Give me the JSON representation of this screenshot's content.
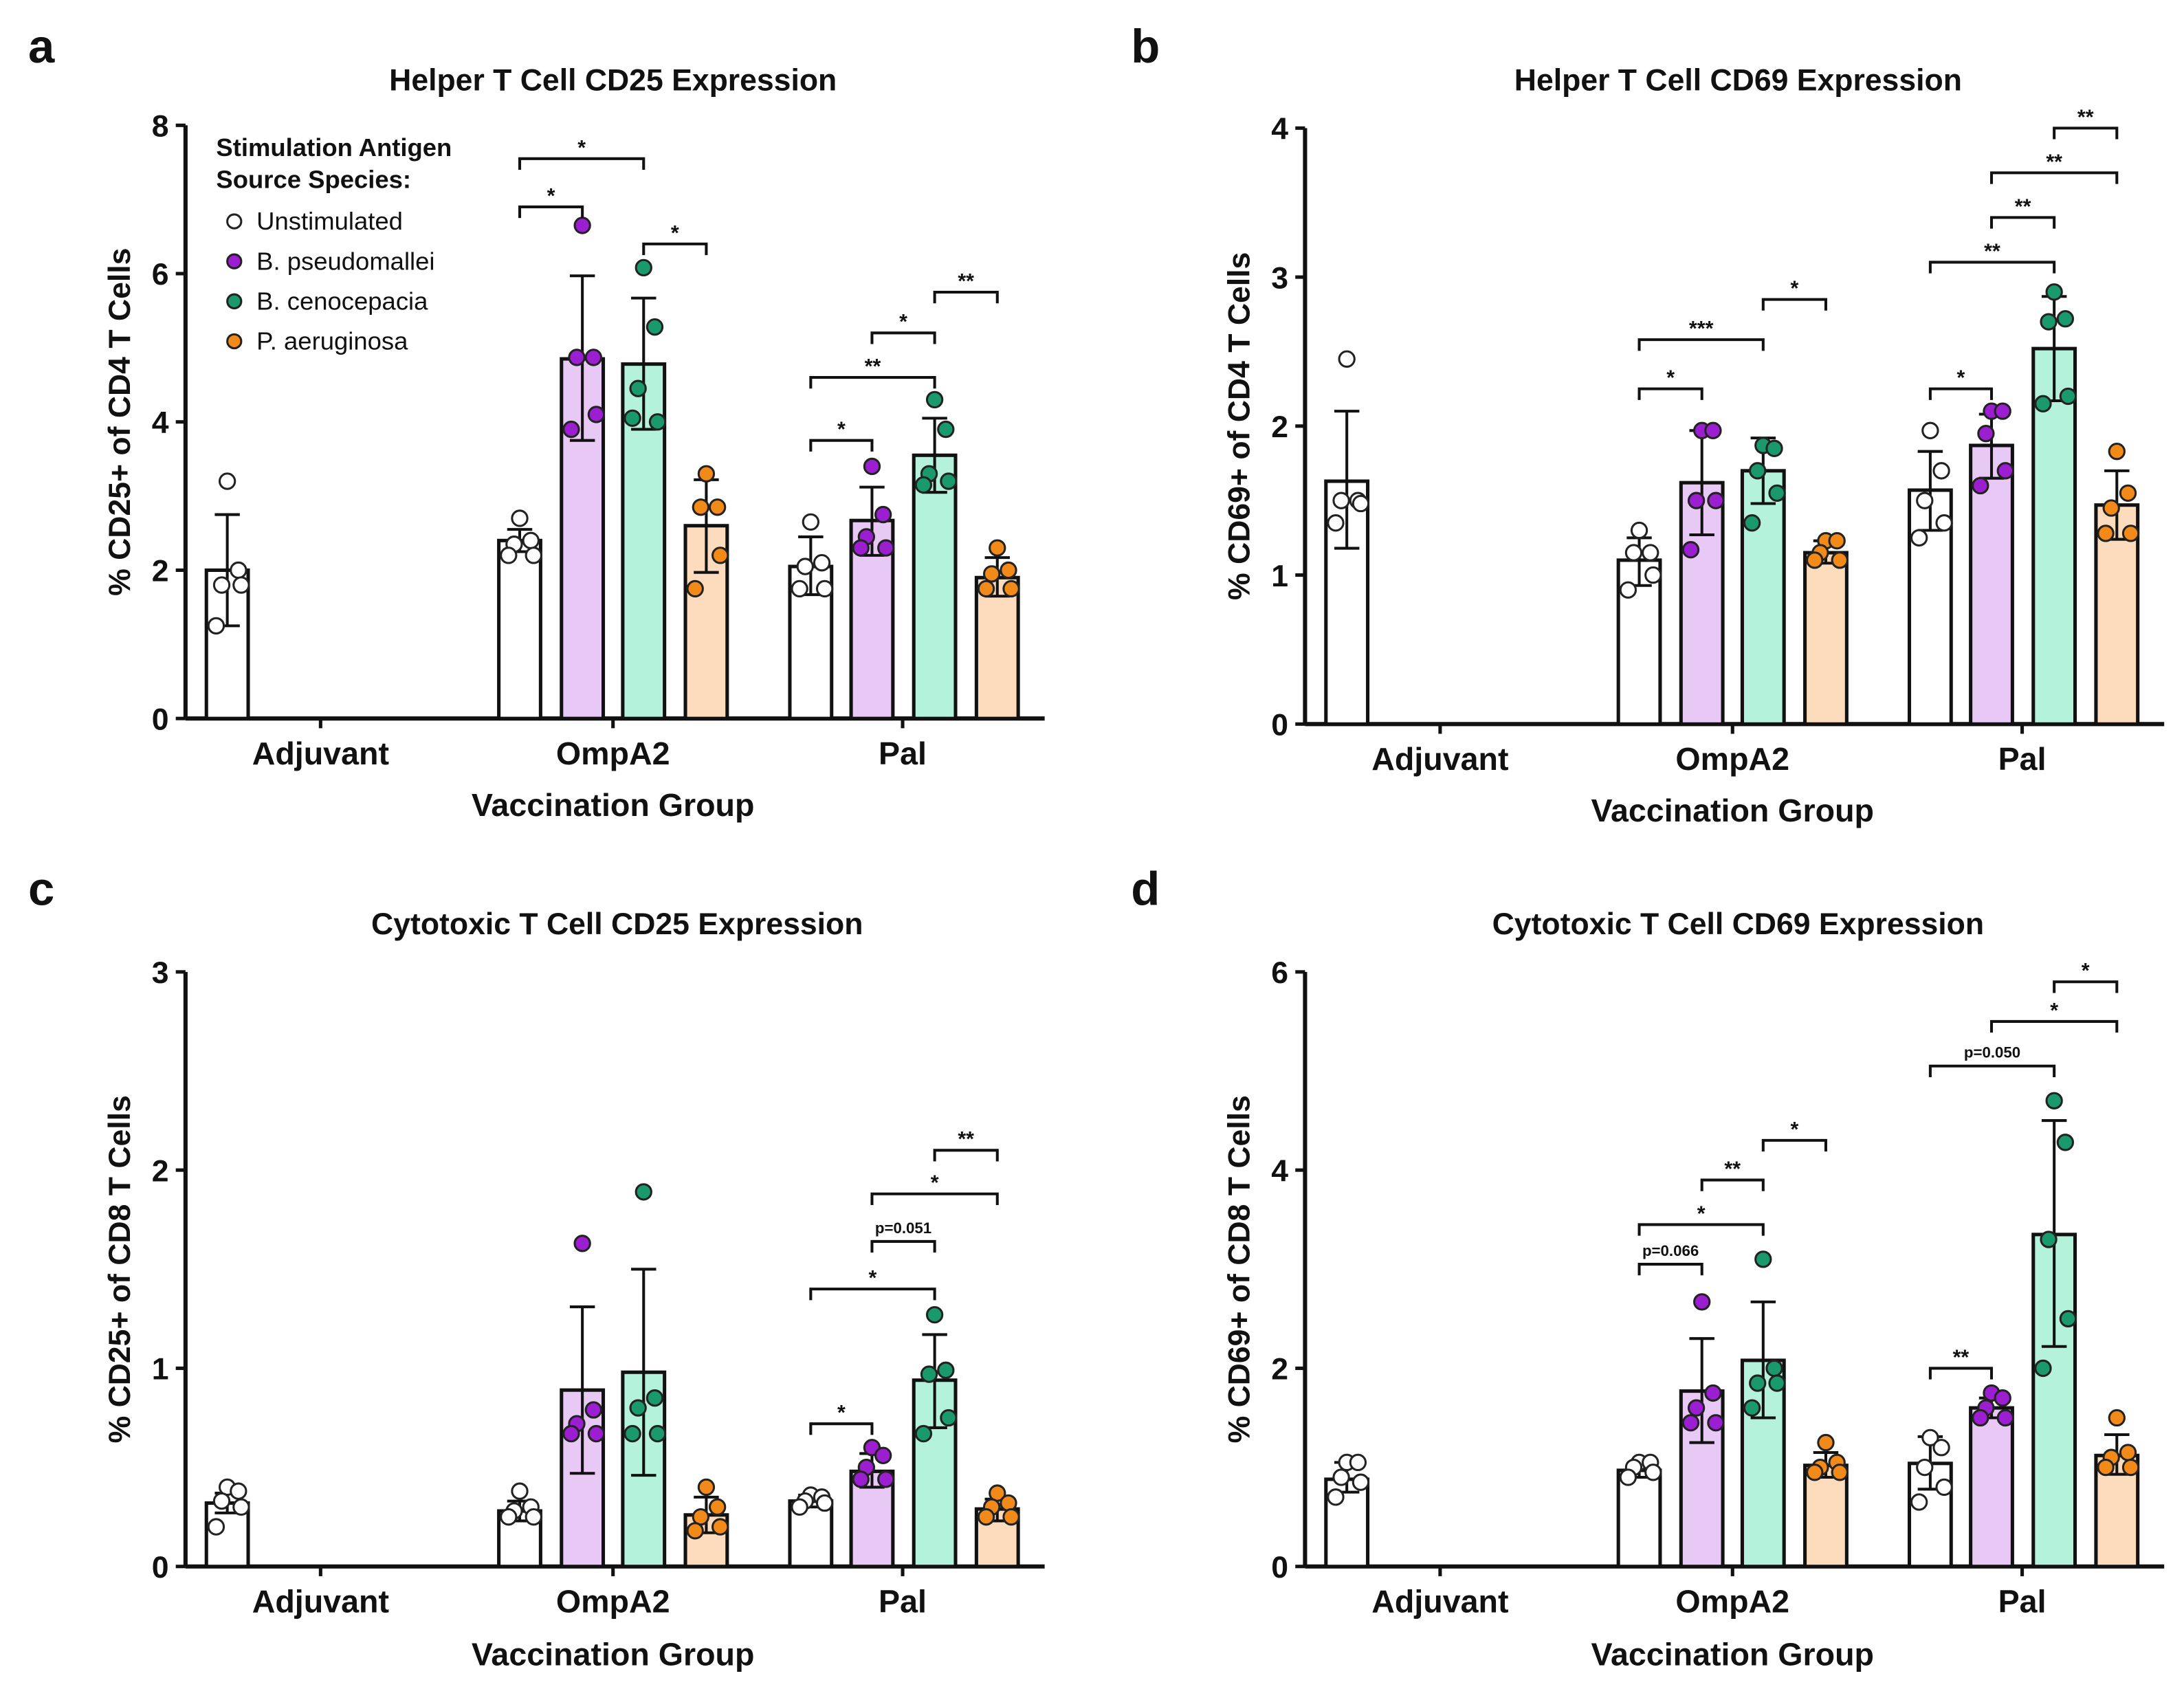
{
  "legend": {
    "title_line1": "Stimulation Antigen",
    "title_line2": "Source Species:",
    "items": [
      {
        "label": "Unstimulated",
        "dot": "#ffffff",
        "fill": "#ffffff"
      },
      {
        "label": "B. pseudomallei",
        "dot": "#9b1fd1",
        "fill": "#e8c8f4"
      },
      {
        "label": "B. cenocepacia",
        "dot": "#1a9a6c",
        "fill": "#b4f2dc"
      },
      {
        "label": "P. aeruginosa",
        "dot": "#f28a1a",
        "fill": "#fcdcbc"
      }
    ]
  },
  "chart_data": [
    {
      "panel": "a",
      "type": "bar",
      "title": "Helper T Cell CD25 Expression",
      "xlabel": "Vaccination Group",
      "ylabel": "% CD25+ of CD4 T Cells",
      "ylim": [
        0,
        8
      ],
      "yticks": [
        "0",
        "2",
        "4",
        "6",
        "8"
      ],
      "categories": [
        "Adjuvant",
        "OmpA2",
        "Pal"
      ],
      "bars": [
        {
          "group": "Adjuvant",
          "series": 0,
          "mean": 2.0,
          "err": [
            1.25,
            2.75
          ],
          "points": [
            3.2,
            2.0,
            1.8,
            1.8,
            1.25
          ]
        },
        {
          "group": "OmpA2",
          "series": 0,
          "mean": 2.4,
          "err": [
            2.25,
            2.55
          ],
          "points": [
            2.7,
            2.4,
            2.35,
            2.2,
            2.2
          ]
        },
        {
          "group": "OmpA2",
          "series": 1,
          "mean": 4.85,
          "err": [
            3.75,
            5.97
          ],
          "points": [
            6.65,
            4.87,
            4.87,
            4.1,
            3.9
          ]
        },
        {
          "group": "OmpA2",
          "series": 2,
          "mean": 4.78,
          "err": [
            3.9,
            5.67
          ],
          "points": [
            6.08,
            5.28,
            4.45,
            4.0,
            4.05
          ]
        },
        {
          "group": "OmpA2",
          "series": 3,
          "mean": 2.6,
          "err": [
            1.97,
            3.22
          ],
          "points": [
            3.3,
            2.85,
            2.85,
            2.2,
            1.75
          ]
        },
        {
          "group": "Pal",
          "series": 0,
          "mean": 2.05,
          "err": [
            1.67,
            2.45
          ],
          "points": [
            2.65,
            2.1,
            2.05,
            1.75,
            1.75
          ]
        },
        {
          "group": "Pal",
          "series": 1,
          "mean": 2.67,
          "err": [
            2.2,
            3.12
          ],
          "points": [
            3.4,
            2.75,
            2.45,
            2.3,
            2.3
          ]
        },
        {
          "group": "Pal",
          "series": 2,
          "mean": 3.55,
          "err": [
            3.05,
            4.05
          ],
          "points": [
            4.3,
            3.9,
            3.3,
            3.2,
            3.15
          ]
        },
        {
          "group": "Pal",
          "series": 3,
          "mean": 1.9,
          "err": [
            1.65,
            2.17
          ],
          "points": [
            2.3,
            2.0,
            1.95,
            1.75,
            1.75
          ]
        }
      ],
      "significance": [
        {
          "group": "OmpA2",
          "from": 0,
          "to": 1,
          "y": 6.9,
          "label": "*"
        },
        {
          "group": "OmpA2",
          "from": 0,
          "to": 2,
          "y": 7.55,
          "label": "*"
        },
        {
          "group": "OmpA2",
          "from": 2,
          "to": 3,
          "y": 6.4,
          "label": "*"
        },
        {
          "group": "Pal",
          "from": 0,
          "to": 1,
          "y": 3.75,
          "label": "*"
        },
        {
          "group": "Pal",
          "from": 0,
          "to": 2,
          "y": 4.6,
          "label": "**"
        },
        {
          "group": "Pal",
          "from": 1,
          "to": 2,
          "y": 5.2,
          "label": "*"
        },
        {
          "group": "Pal",
          "from": 2,
          "to": 3,
          "y": 5.75,
          "label": "**"
        }
      ]
    },
    {
      "panel": "b",
      "type": "bar",
      "title": "Helper T Cell CD69 Expression",
      "xlabel": "Vaccination Group",
      "ylabel": "% CD69+ of CD4 T Cells",
      "ylim": [
        0,
        4
      ],
      "yticks": [
        "0",
        "1",
        "2",
        "3",
        "4"
      ],
      "categories": [
        "Adjuvant",
        "OmpA2",
        "Pal"
      ],
      "bars": [
        {
          "group": "Adjuvant",
          "series": 0,
          "mean": 1.63,
          "err": [
            1.18,
            2.1
          ],
          "points": [
            2.45,
            1.5,
            1.5,
            1.48,
            1.35
          ]
        },
        {
          "group": "OmpA2",
          "series": 0,
          "mean": 1.1,
          "err": [
            0.93,
            1.25
          ],
          "points": [
            1.3,
            1.15,
            1.15,
            1.0,
            0.9
          ]
        },
        {
          "group": "OmpA2",
          "series": 1,
          "mean": 1.62,
          "err": [
            1.27,
            1.97
          ],
          "points": [
            1.97,
            1.97,
            1.5,
            1.5,
            1.17
          ]
        },
        {
          "group": "OmpA2",
          "series": 2,
          "mean": 1.7,
          "err": [
            1.48,
            1.92
          ],
          "points": [
            1.87,
            1.85,
            1.7,
            1.55,
            1.35
          ]
        },
        {
          "group": "OmpA2",
          "series": 3,
          "mean": 1.15,
          "err": [
            1.08,
            1.23
          ],
          "points": [
            1.23,
            1.23,
            1.15,
            1.1,
            1.1
          ]
        },
        {
          "group": "Pal",
          "series": 0,
          "mean": 1.57,
          "err": [
            1.3,
            1.83
          ],
          "points": [
            1.97,
            1.7,
            1.5,
            1.35,
            1.25
          ]
        },
        {
          "group": "Pal",
          "series": 1,
          "mean": 1.87,
          "err": [
            1.65,
            2.08
          ],
          "points": [
            2.1,
            2.1,
            1.95,
            1.7,
            1.6
          ]
        },
        {
          "group": "Pal",
          "series": 2,
          "mean": 2.52,
          "err": [
            2.17,
            2.87
          ],
          "points": [
            2.9,
            2.72,
            2.7,
            2.2,
            2.15
          ]
        },
        {
          "group": "Pal",
          "series": 3,
          "mean": 1.47,
          "err": [
            1.24,
            1.7
          ],
          "points": [
            1.83,
            1.55,
            1.45,
            1.28,
            1.28
          ]
        }
      ],
      "significance": [
        {
          "group": "OmpA2",
          "from": 0,
          "to": 1,
          "y": 2.25,
          "label": "*"
        },
        {
          "group": "OmpA2",
          "from": 0,
          "to": 2,
          "y": 2.58,
          "label": "***"
        },
        {
          "group": "OmpA2",
          "from": 2,
          "to": 3,
          "y": 2.85,
          "label": "*"
        },
        {
          "group": "Pal",
          "from": 0,
          "to": 1,
          "y": 2.25,
          "label": "*"
        },
        {
          "group": "Pal",
          "from": 0,
          "to": 2,
          "y": 3.1,
          "label": "**"
        },
        {
          "group": "Pal",
          "from": 1,
          "to": 2,
          "y": 3.4,
          "label": "**"
        },
        {
          "group": "Pal",
          "from": 1,
          "to": 3,
          "y": 3.7,
          "label": "**"
        },
        {
          "group": "Pal",
          "from": 2,
          "to": 3,
          "y": 4.0,
          "label": "**"
        }
      ]
    },
    {
      "panel": "c",
      "type": "bar",
      "title": "Cytotoxic T Cell CD25 Expression",
      "xlabel": "Vaccination Group",
      "ylabel": "% CD25+ of CD8 T Cells",
      "ylim": [
        0,
        3
      ],
      "yticks": [
        "0",
        "1",
        "2",
        "3"
      ],
      "categories": [
        "Adjuvant",
        "OmpA2",
        "Pal"
      ],
      "bars": [
        {
          "group": "Adjuvant",
          "series": 0,
          "mean": 0.32,
          "err": [
            0.27,
            0.37
          ],
          "points": [
            0.4,
            0.38,
            0.33,
            0.3,
            0.2
          ]
        },
        {
          "group": "OmpA2",
          "series": 0,
          "mean": 0.28,
          "err": [
            0.23,
            0.33
          ],
          "points": [
            0.38,
            0.3,
            0.28,
            0.25,
            0.25
          ]
        },
        {
          "group": "OmpA2",
          "series": 1,
          "mean": 0.89,
          "err": [
            0.47,
            1.31
          ],
          "points": [
            1.63,
            0.79,
            0.72,
            0.67,
            0.67
          ]
        },
        {
          "group": "OmpA2",
          "series": 2,
          "mean": 0.98,
          "err": [
            0.46,
            1.5
          ],
          "points": [
            1.89,
            0.85,
            0.8,
            0.67,
            0.67
          ]
        },
        {
          "group": "OmpA2",
          "series": 3,
          "mean": 0.26,
          "err": [
            0.17,
            0.35
          ],
          "points": [
            0.4,
            0.3,
            0.25,
            0.2,
            0.18
          ]
        },
        {
          "group": "Pal",
          "series": 0,
          "mean": 0.33,
          "err": [
            0.3,
            0.36
          ],
          "points": [
            0.36,
            0.35,
            0.33,
            0.32,
            0.3
          ]
        },
        {
          "group": "Pal",
          "series": 1,
          "mean": 0.48,
          "err": [
            0.4,
            0.57
          ],
          "points": [
            0.6,
            0.56,
            0.5,
            0.44,
            0.44
          ]
        },
        {
          "group": "Pal",
          "series": 2,
          "mean": 0.94,
          "err": [
            0.7,
            1.17
          ],
          "points": [
            1.27,
            0.99,
            0.97,
            0.75,
            0.67
          ]
        },
        {
          "group": "Pal",
          "series": 3,
          "mean": 0.29,
          "err": [
            0.23,
            0.34
          ],
          "points": [
            0.37,
            0.32,
            0.3,
            0.25,
            0.25
          ]
        }
      ],
      "significance": [
        {
          "group": "Pal",
          "from": 0,
          "to": 1,
          "y": 0.72,
          "label": "*"
        },
        {
          "group": "Pal",
          "from": 0,
          "to": 2,
          "y": 1.4,
          "label": "*"
        },
        {
          "group": "Pal",
          "from": 1,
          "to": 2,
          "y": 1.64,
          "label": "p=0.051"
        },
        {
          "group": "Pal",
          "from": 1,
          "to": 3,
          "y": 1.88,
          "label": "*"
        },
        {
          "group": "Pal",
          "from": 2,
          "to": 3,
          "y": 2.1,
          "label": "**"
        }
      ]
    },
    {
      "panel": "d",
      "type": "bar",
      "title": "Cytotoxic T Cell CD69 Expression",
      "xlabel": "Vaccination Group",
      "ylabel": "% CD69+ of CD8 T Cells",
      "ylim": [
        0,
        6
      ],
      "yticks": [
        "0",
        "2",
        "4",
        "6"
      ],
      "categories": [
        "Adjuvant",
        "OmpA2",
        "Pal"
      ],
      "bars": [
        {
          "group": "Adjuvant",
          "series": 0,
          "mean": 0.88,
          "err": [
            0.75,
            1.05
          ],
          "points": [
            1.05,
            1.05,
            0.9,
            0.85,
            0.7
          ]
        },
        {
          "group": "OmpA2",
          "series": 0,
          "mean": 0.97,
          "err": [
            0.9,
            1.04
          ],
          "points": [
            1.05,
            1.05,
            1.0,
            0.95,
            0.9
          ]
        },
        {
          "group": "OmpA2",
          "series": 1,
          "mean": 1.77,
          "err": [
            1.25,
            2.3
          ],
          "points": [
            2.67,
            1.75,
            1.6,
            1.45,
            1.45
          ]
        },
        {
          "group": "OmpA2",
          "series": 2,
          "mean": 2.08,
          "err": [
            1.5,
            2.67
          ],
          "points": [
            3.1,
            2.0,
            1.85,
            1.85,
            1.6
          ]
        },
        {
          "group": "OmpA2",
          "series": 3,
          "mean": 1.02,
          "err": [
            0.9,
            1.15
          ],
          "points": [
            1.25,
            1.05,
            1.0,
            0.95,
            0.95
          ]
        },
        {
          "group": "Pal",
          "series": 0,
          "mean": 1.04,
          "err": [
            0.78,
            1.31
          ],
          "points": [
            1.3,
            1.2,
            1.0,
            0.8,
            0.65
          ]
        },
        {
          "group": "Pal",
          "series": 1,
          "mean": 1.6,
          "err": [
            1.5,
            1.7
          ],
          "points": [
            1.75,
            1.7,
            1.6,
            1.5,
            1.5
          ]
        },
        {
          "group": "Pal",
          "series": 2,
          "mean": 3.35,
          "err": [
            2.22,
            4.5
          ],
          "points": [
            4.7,
            4.28,
            3.3,
            2.5,
            2.0
          ]
        },
        {
          "group": "Pal",
          "series": 3,
          "mean": 1.12,
          "err": [
            0.93,
            1.33
          ],
          "points": [
            1.5,
            1.15,
            1.1,
            1.0,
            1.0
          ]
        }
      ],
      "significance": [
        {
          "group": "OmpA2",
          "from": 0,
          "to": 1,
          "y": 3.05,
          "label": "p=0.066"
        },
        {
          "group": "OmpA2",
          "from": 0,
          "to": 2,
          "y": 3.45,
          "label": "*"
        },
        {
          "group": "OmpA2",
          "from": 1,
          "to": 2,
          "y": 3.9,
          "label": "**"
        },
        {
          "group": "OmpA2",
          "from": 2,
          "to": 3,
          "y": 4.3,
          "label": "*"
        },
        {
          "group": "Pal",
          "from": 0,
          "to": 1,
          "y": 2.0,
          "label": "**"
        },
        {
          "group": "Pal",
          "from": 0,
          "to": 2,
          "y": 5.05,
          "label": "p=0.050"
        },
        {
          "group": "Pal",
          "from": 1,
          "to": 3,
          "y": 5.5,
          "label": "*"
        },
        {
          "group": "Pal",
          "from": 2,
          "to": 3,
          "y": 5.9,
          "label": "*"
        }
      ]
    }
  ]
}
